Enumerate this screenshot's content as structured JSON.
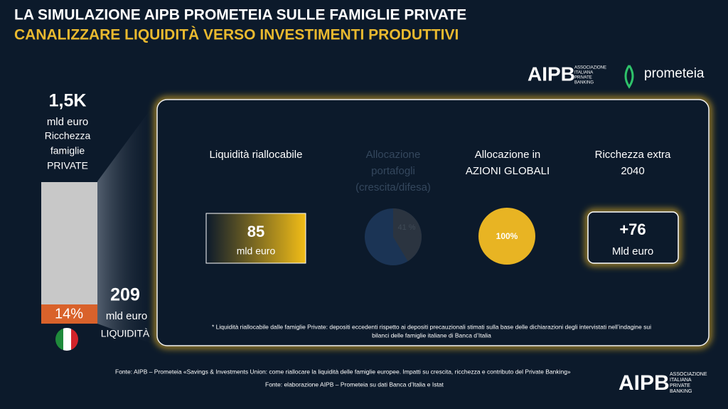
{
  "header": {
    "title": "LA SIMULAZIONE AIPB PROMETEIA SULLE FAMIGLIE PRIVATE",
    "subtitle": "CANALIZZARE LIQUIDITÀ VERSO INVESTIMENTI PRODUTTIVI"
  },
  "logos": {
    "aipb": "AIPB",
    "aipb_caption": [
      "ASSOCIAZIONE",
      "ITALIANA",
      "PRIVATE",
      "BANKING"
    ],
    "prometeia": "prometeia"
  },
  "wealth": {
    "total": "1,5K",
    "total_unit": "mld euro",
    "total_label": [
      "Ricchezza",
      "famiglie",
      "PRIVATE"
    ],
    "share": "14%",
    "liquidity": "209",
    "liquidity_unit": "mld euro",
    "liquidity_label": "LIQUIDITÀ"
  },
  "columns": [
    {
      "heading": [
        "Liquidità riallocabile"
      ],
      "value": "85",
      "unit": "mld euro"
    },
    {
      "heading": [
        "Allocazione",
        "portafogli",
        "(crescita/difesa)"
      ],
      "value": "41 %"
    },
    {
      "heading": [
        "Allocazione in",
        "AZIONI GLOBALI"
      ],
      "value": "100%"
    },
    {
      "heading": [
        "Ricchezza extra",
        "2040"
      ],
      "value": "+76",
      "unit": "Mld euro"
    }
  ],
  "footnote": [
    "* Liquidità riallocabile dalle famiglie Private: depositi eccedenti rispetto ai depositi precauzionali stimati sulla base delle dichiarazioni degli intervistati nell’indagine sui",
    "bilanci delle famiglie italiane di Banca d’Italia"
  ],
  "sources": [
    "Fonte: AIPB – Prometeia «Savings & Investments Union: come riallocare la liquidità delle famiglie europee. Impatti su crescita, ricchezza e contributo del Private Banking»",
    "Fonte:  elaborazione AIPB – Prometeia su dati Banca d’Italia e Istat"
  ]
}
